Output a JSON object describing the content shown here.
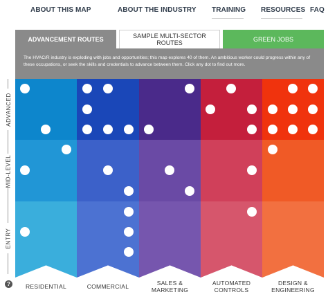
{
  "nav": {
    "items": [
      {
        "id": "about-this-map",
        "label": "ABOUT THIS MAP"
      },
      {
        "id": "about-the-industry",
        "label": "ABOUT THE INDUSTRY"
      },
      {
        "id": "training",
        "label": "TRAINING"
      },
      {
        "id": "resources",
        "label": "RESOURCES"
      },
      {
        "id": "faq",
        "label": "FAQ"
      }
    ]
  },
  "tabs": {
    "advancement": "ADVANCEMENT ROUTES",
    "sample": "SAMPLE MULTI-SECTOR ROUTES",
    "green": "GREEN JOBS"
  },
  "intro": {
    "text": "The HVAC/R industry is exploding with jobs and opportunities; this map explores 40 of them. An ambitious worker could progress within any of these occupations, or seek the skills and credentials to advance between them. Click any dot to find out more."
  },
  "levels": [
    "ADVANCED",
    "MID-LEVEL",
    "ENTRY"
  ],
  "columns": [
    {
      "id": "residential",
      "label": "RESIDENTIAL",
      "colors": {
        "advanced": "#0d86cc",
        "mid": "#2196d6",
        "entry": "#3aaedc"
      }
    },
    {
      "id": "commercial",
      "label": "COMMERCIAL",
      "colors": {
        "advanced": "#1a47b8",
        "mid": "#3c61c9",
        "entry": "#4c72d2"
      }
    },
    {
      "id": "sales-marketing",
      "label": "SALES & MARKETING",
      "colors": {
        "advanced": "#4a2a8a",
        "mid": "#6a4aa5",
        "entry": "#7656ae"
      }
    },
    {
      "id": "automated-controls",
      "label": "AUTOMATED CONTROLS",
      "colors": {
        "advanced": "#c41f3c",
        "mid": "#d0405a",
        "entry": "#d6566c"
      }
    },
    {
      "id": "design-engineering",
      "label": "DESIGN & ENGINEERING",
      "colors": {
        "advanced": "#f0330d",
        "mid": "#f05a26",
        "entry": "#f27040"
      }
    }
  ],
  "help": {
    "icon": "question-icon",
    "glyph": "?"
  }
}
